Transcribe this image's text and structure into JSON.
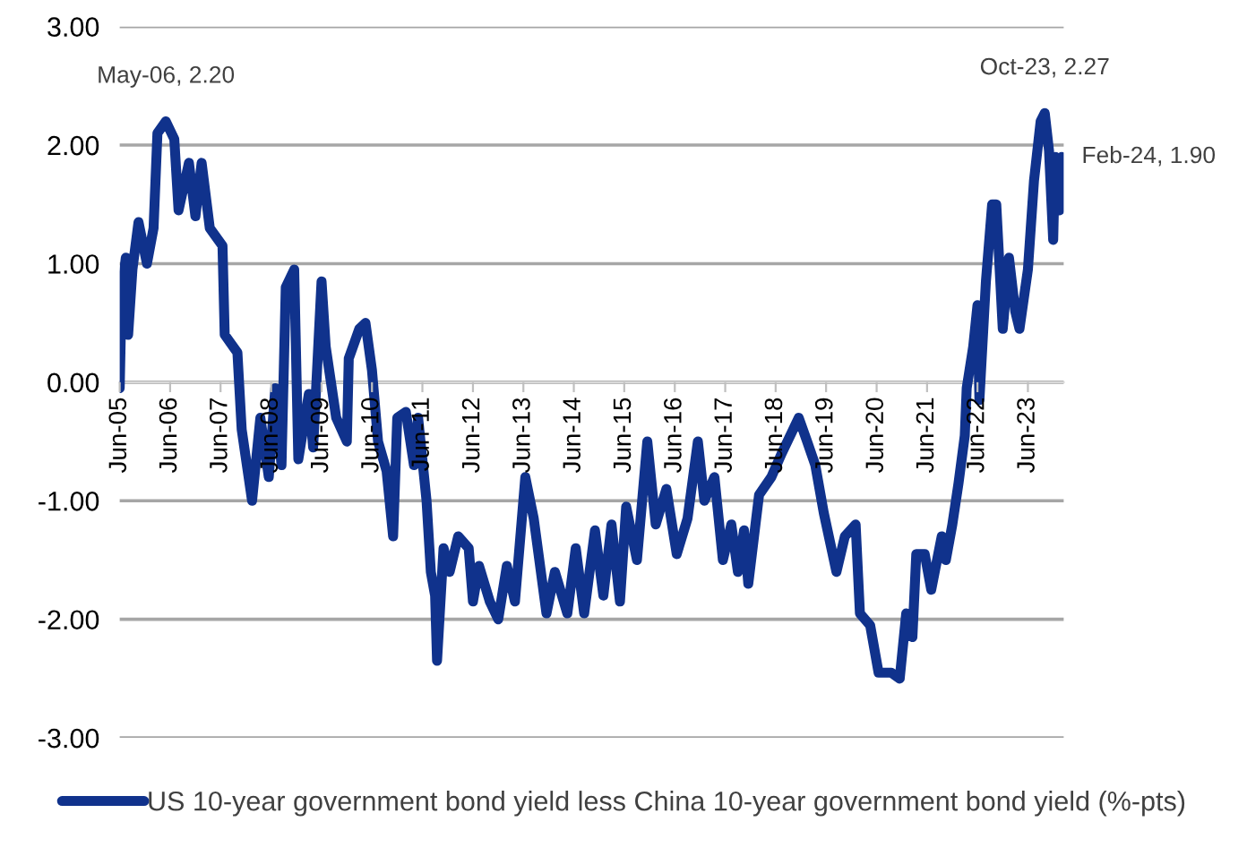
{
  "chart_data": {
    "type": "line",
    "x": [
      "2005-06-01",
      "2005-06-15",
      "2005-07-15",
      "2005-08-01",
      "2005-09-01",
      "2005-10-15",
      "2005-12-15",
      "2006-02-01",
      "2006-03-01",
      "2006-05-01",
      "2006-07-01",
      "2006-08-01",
      "2006-10-15",
      "2006-12-01",
      "2007-01-15",
      "2007-03-15",
      "2007-06-15",
      "2007-07-01",
      "2007-10-01",
      "2007-11-01",
      "2008-01-15",
      "2008-03-15",
      "2008-05-15",
      "2008-07-01",
      "2008-08-15",
      "2008-09-15",
      "2008-11-15",
      "2008-12-15",
      "2009-03-01",
      "2009-04-01",
      "2009-06-01",
      "2009-07-01",
      "2009-09-15",
      "2009-12-01",
      "2009-12-15",
      "2010-03-01",
      "2010-04-15",
      "2010-06-01",
      "2010-07-15",
      "2010-09-15",
      "2010-11-01",
      "2010-12-01",
      "2011-02-01",
      "2011-04-01",
      "2011-05-01",
      "2011-07-01",
      "2011-08-01",
      "2011-09-01",
      "2011-09-15",
      "2011-11-01",
      "2011-12-15",
      "2012-02-15",
      "2012-05-01",
      "2012-06-01",
      "2012-07-15",
      "2012-10-01",
      "2012-12-01",
      "2013-02-01",
      "2013-04-01",
      "2013-06-15",
      "2013-08-15",
      "2013-11-15",
      "2014-01-15",
      "2014-04-15",
      "2014-06-15",
      "2014-08-15",
      "2014-11-01",
      "2015-01-01",
      "2015-03-01",
      "2015-05-01",
      "2015-06-15",
      "2015-09-01",
      "2015-11-15",
      "2016-01-15",
      "2016-04-01",
      "2016-06-15",
      "2016-09-01",
      "2016-11-15",
      "2017-01-01",
      "2017-03-15",
      "2017-05-15",
      "2017-07-15",
      "2017-09-01",
      "2017-10-15",
      "2017-11-15",
      "2018-02-01",
      "2018-05-01",
      "2018-07-15",
      "2018-11-15",
      "2019-01-15",
      "2019-03-15",
      "2019-05-15",
      "2019-08-15",
      "2019-10-15",
      "2020-01-01",
      "2020-02-01",
      "2020-04-15",
      "2020-06-15",
      "2020-09-15",
      "2020-11-15",
      "2021-01-01",
      "2021-02-15",
      "2021-03-15",
      "2021-05-15",
      "2021-07-01",
      "2021-09-15",
      "2021-10-15",
      "2021-12-01",
      "2022-01-15",
      "2022-03-01",
      "2022-03-15",
      "2022-05-01",
      "2022-06-01",
      "2022-06-15",
      "2022-08-01",
      "2022-09-15",
      "2022-10-15",
      "2022-12-01",
      "2023-01-15",
      "2023-03-01",
      "2023-04-01",
      "2023-06-01",
      "2023-07-15",
      "2023-09-01",
      "2023-10-01",
      "2023-11-01",
      "2023-12-01",
      "2023-12-15",
      "2024-01-15",
      "2024-02-01"
    ],
    "series": [
      {
        "name": "US 10-year government bond yield less China 10-year government bond yield (%-pts)",
        "color": "#10328c",
        "values": [
          -0.05,
          0.75,
          1.05,
          0.4,
          0.95,
          1.35,
          1.0,
          1.3,
          2.1,
          2.2,
          2.05,
          1.45,
          1.85,
          1.4,
          1.85,
          1.3,
          1.15,
          0.4,
          0.25,
          -0.4,
          -1.0,
          -0.3,
          -0.8,
          -0.05,
          -0.7,
          0.8,
          0.95,
          -0.65,
          -0.1,
          -0.55,
          0.85,
          0.3,
          -0.3,
          -0.5,
          0.2,
          0.45,
          0.5,
          0.1,
          -0.5,
          -0.75,
          -1.3,
          -0.3,
          -0.25,
          -0.7,
          -0.3,
          -1.0,
          -1.6,
          -1.8,
          -2.35,
          -1.4,
          -1.6,
          -1.3,
          -1.4,
          -1.85,
          -1.55,
          -1.85,
          -2.0,
          -1.55,
          -1.85,
          -0.8,
          -1.15,
          -1.95,
          -1.6,
          -1.95,
          -1.4,
          -1.95,
          -1.25,
          -1.8,
          -1.2,
          -1.85,
          -1.05,
          -1.5,
          -0.5,
          -1.2,
          -0.9,
          -1.45,
          -1.15,
          -0.5,
          -1.0,
          -0.8,
          -1.5,
          -1.2,
          -1.6,
          -1.25,
          -1.7,
          -0.95,
          -0.8,
          -0.6,
          -0.3,
          -0.5,
          -0.7,
          -1.1,
          -1.6,
          -1.3,
          -1.2,
          -1.95,
          -2.05,
          -2.45,
          -2.45,
          -2.5,
          -1.95,
          -2.15,
          -1.45,
          -1.45,
          -1.75,
          -1.3,
          -1.5,
          -1.2,
          -0.85,
          -0.45,
          -0.05,
          0.3,
          0.65,
          -0.15,
          0.85,
          1.5,
          1.5,
          0.45,
          1.05,
          0.6,
          0.45,
          0.95,
          1.7,
          2.2,
          2.27,
          1.95,
          1.2,
          1.9,
          1.45,
          1.9
        ]
      }
    ],
    "xlim": [
      "2005-06-01",
      "2024-02-15"
    ],
    "xticks": [
      {
        "value": "2005-06-01",
        "label": "Jun-05"
      },
      {
        "value": "2006-06-01",
        "label": "Jun-06"
      },
      {
        "value": "2007-06-01",
        "label": "Jun-07"
      },
      {
        "value": "2008-06-01",
        "label": "Jun-08"
      },
      {
        "value": "2009-06-01",
        "label": "Jun-09"
      },
      {
        "value": "2010-06-01",
        "label": "Jun-10"
      },
      {
        "value": "2011-06-01",
        "label": "Jun-11"
      },
      {
        "value": "2012-06-01",
        "label": "Jun-12"
      },
      {
        "value": "2013-06-01",
        "label": "Jun-13"
      },
      {
        "value": "2014-06-01",
        "label": "Jun-14"
      },
      {
        "value": "2015-06-01",
        "label": "Jun-15"
      },
      {
        "value": "2016-06-01",
        "label": "Jun-16"
      },
      {
        "value": "2017-06-01",
        "label": "Jun-17"
      },
      {
        "value": "2018-06-01",
        "label": "Jun-18"
      },
      {
        "value": "2019-06-01",
        "label": "Jun-19"
      },
      {
        "value": "2020-06-01",
        "label": "Jun-20"
      },
      {
        "value": "2021-06-01",
        "label": "Jun-21"
      },
      {
        "value": "2022-06-01",
        "label": "Jun-22"
      },
      {
        "value": "2023-06-01",
        "label": "Jun-23"
      }
    ],
    "ylim": [
      -3,
      3
    ],
    "yticks": [
      {
        "value": -3,
        "label": "-3.00"
      },
      {
        "value": -2,
        "label": "-2.00"
      },
      {
        "value": -1,
        "label": "-1.00"
      },
      {
        "value": 0,
        "label": "0.00"
      },
      {
        "value": 1,
        "label": "1.00"
      },
      {
        "value": 2,
        "label": "2.00"
      },
      {
        "value": 3,
        "label": "3.00"
      }
    ],
    "grid": "y",
    "legend": "bottom",
    "marker": "none",
    "line_style": "solid",
    "annotations": [
      {
        "text": "May-06, 2.20",
        "x": "2006-05-01",
        "y": 2.2
      },
      {
        "text": "Oct-23, 2.27",
        "x": "2023-10-01",
        "y": 2.27
      },
      {
        "text": "Feb-24, 1.90",
        "x": "2024-02-01",
        "y": 1.9
      }
    ]
  }
}
